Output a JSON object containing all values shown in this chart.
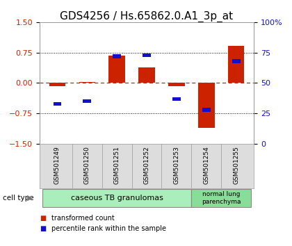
{
  "title": "GDS4256 / Hs.65862.0.A1_3p_at",
  "categories": [
    "GSM501249",
    "GSM501250",
    "GSM501251",
    "GSM501252",
    "GSM501253",
    "GSM501254",
    "GSM501255"
  ],
  "transformed_count": [
    -0.08,
    0.02,
    0.68,
    0.38,
    -0.08,
    -1.1,
    0.92
  ],
  "percentile_rank": [
    33,
    35,
    72,
    73,
    37,
    28,
    68
  ],
  "ylim_left": [
    -1.5,
    1.5
  ],
  "ylim_right": [
    0,
    100
  ],
  "yticks_left": [
    -1.5,
    -0.75,
    0,
    0.75,
    1.5
  ],
  "yticks_right": [
    0,
    25,
    50,
    75,
    100
  ],
  "ytick_labels_right": [
    "0",
    "25",
    "50",
    "75",
    "100%"
  ],
  "red_color": "#cc2200",
  "blue_color": "#1111cc",
  "bar_width": 0.55,
  "group1_color": "#aaeebb",
  "group2_color": "#88dd99",
  "group1_label": "caseous TB granulomas",
  "group2_label": "normal lung\nparenchyma",
  "cell_type_label": "cell type",
  "legend_red": "transformed count",
  "legend_blue": "percentile rank within the sample",
  "background_color": "#ffffff",
  "title_fontsize": 11,
  "tick_fontsize": 8
}
